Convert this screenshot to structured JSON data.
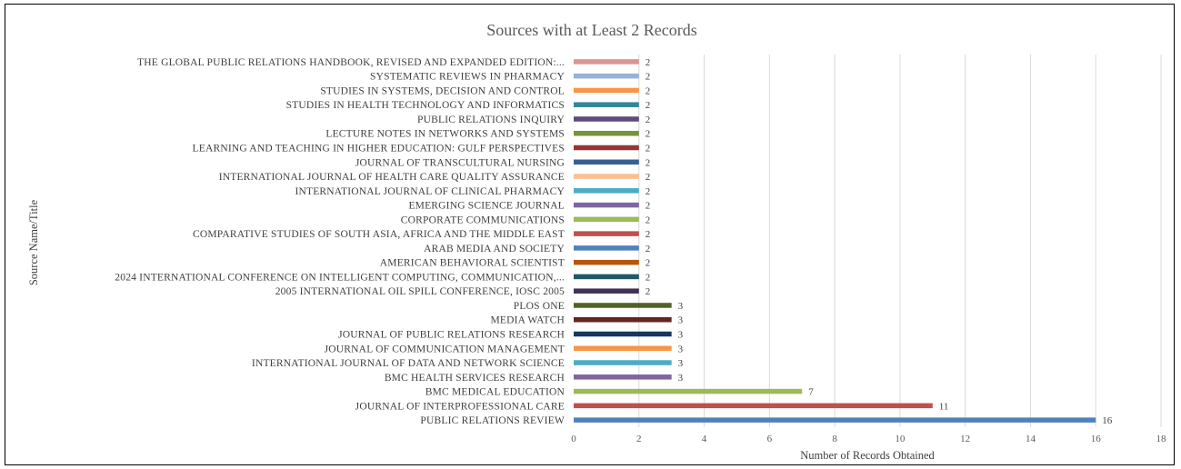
{
  "chart_data": {
    "type": "bar",
    "orientation": "horizontal",
    "title": "Sources with at Least 2 Records",
    "xlabel": "Number of Records Obtained",
    "ylabel": "Source Name/Title",
    "xlim": [
      0,
      18
    ],
    "xticks": [
      0,
      2,
      4,
      6,
      8,
      10,
      12,
      14,
      16,
      18
    ],
    "grid": true,
    "data_labels": true,
    "categories": [
      "THE GLOBAL PUBLIC RELATIONS HANDBOOK, REVISED AND EXPANDED EDITION:...",
      "SYSTEMATIC REVIEWS IN PHARMACY",
      "STUDIES IN SYSTEMS, DECISION AND CONTROL",
      "STUDIES IN HEALTH TECHNOLOGY AND INFORMATICS",
      "PUBLIC RELATIONS INQUIRY",
      "LECTURE NOTES IN NETWORKS AND SYSTEMS",
      "LEARNING AND TEACHING IN HIGHER EDUCATION: GULF PERSPECTIVES",
      "JOURNAL OF TRANSCULTURAL NURSING",
      "INTERNATIONAL JOURNAL OF HEALTH CARE QUALITY ASSURANCE",
      "INTERNATIONAL JOURNAL OF CLINICAL PHARMACY",
      "EMERGING SCIENCE JOURNAL",
      "CORPORATE COMMUNICATIONS",
      "COMPARATIVE STUDIES OF SOUTH ASIA, AFRICA AND THE MIDDLE EAST",
      "ARAB MEDIA AND SOCIETY",
      "AMERICAN BEHAVIORAL SCIENTIST",
      "2024 INTERNATIONAL CONFERENCE ON INTELLIGENT COMPUTING, COMMUNICATION,...",
      "2005 INTERNATIONAL OIL SPILL CONFERENCE, IOSC 2005",
      "PLOS ONE",
      "MEDIA WATCH",
      "JOURNAL OF PUBLIC RELATIONS RESEARCH",
      "JOURNAL OF COMMUNICATION MANAGEMENT",
      "INTERNATIONAL JOURNAL OF DATA AND NETWORK SCIENCE",
      "BMC HEALTH SERVICES RESEARCH",
      "BMC MEDICAL EDUCATION",
      "JOURNAL OF INTERPROFESSIONAL CARE",
      "PUBLIC RELATIONS REVIEW"
    ],
    "values": [
      2,
      2,
      2,
      2,
      2,
      2,
      2,
      2,
      2,
      2,
      2,
      2,
      2,
      2,
      2,
      2,
      2,
      3,
      3,
      3,
      3,
      3,
      3,
      7,
      11,
      16
    ],
    "colors": [
      "#d99694",
      "#95b3d7",
      "#f79646",
      "#31859c",
      "#604a7b",
      "#77933c",
      "#953735",
      "#376092",
      "#fac090",
      "#4bacc6",
      "#8064a2",
      "#9bbb59",
      "#c0504d",
      "#4f81bd",
      "#b65708",
      "#215968",
      "#3f3151",
      "#4f6228",
      "#632523",
      "#17375e",
      "#f79646",
      "#4bacc6",
      "#8064a2",
      "#9bbb59",
      "#c0504d",
      "#4f81bd"
    ]
  }
}
